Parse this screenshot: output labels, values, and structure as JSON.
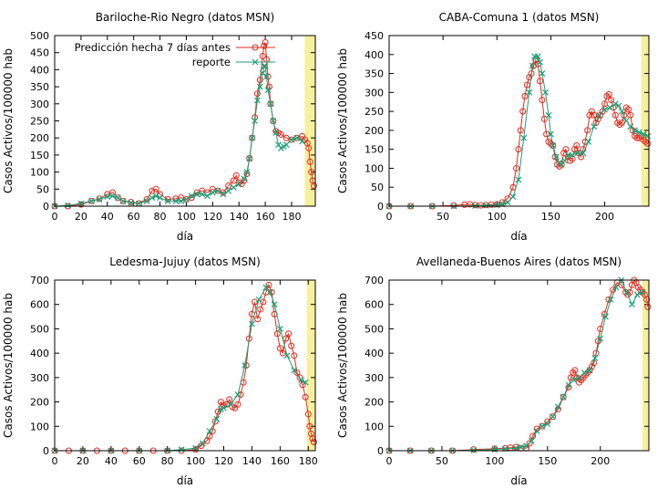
{
  "colors": {
    "pred": "#e3291c",
    "rep": "#1b9e77",
    "band": "#f7f09c",
    "bandEdge": "#c9b800"
  },
  "legend": {
    "pred": "Predicción hecha 7 días antes",
    "rep": "reporte"
  },
  "chart_data": [
    {
      "type": "line",
      "title": "Bariloche-Rio Negro (datos MSN)",
      "xlabel": "día",
      "ylabel": "Casos Activos/100000 hab",
      "xlim": [
        0,
        198
      ],
      "ylim": [
        0,
        500
      ],
      "xticks": [
        0,
        20,
        40,
        60,
        80,
        100,
        120,
        140,
        160,
        180
      ],
      "yticks": [
        0,
        50,
        100,
        150,
        200,
        250,
        300,
        350,
        400,
        450,
        500
      ],
      "band": [
        190,
        198
      ],
      "legend": "top-left",
      "series": [
        {
          "key": "pred",
          "name": "Predicción hecha 7 días antes",
          "x": [
            0,
            10,
            20,
            28,
            34,
            40,
            44,
            48,
            52,
            58,
            64,
            70,
            74,
            77,
            80,
            86,
            92,
            96,
            100,
            104,
            108,
            112,
            116,
            120,
            124,
            128,
            132,
            136,
            138,
            140,
            142,
            144,
            146,
            148,
            150,
            152,
            154,
            156,
            158,
            159,
            160,
            161,
            162,
            163,
            164,
            166,
            168,
            170,
            172,
            176,
            180,
            184,
            188,
            190,
            192,
            193,
            194,
            195,
            196,
            197
          ],
          "y": [
            0,
            0,
            5,
            15,
            22,
            35,
            40,
            25,
            15,
            12,
            8,
            20,
            45,
            50,
            35,
            20,
            22,
            25,
            20,
            25,
            40,
            45,
            40,
            50,
            45,
            40,
            60,
            75,
            90,
            70,
            65,
            75,
            95,
            140,
            200,
            260,
            330,
            370,
            440,
            470,
            480,
            430,
            380,
            350,
            300,
            250,
            220,
            215,
            210,
            200,
            195,
            200,
            205,
            195,
            185,
            170,
            130,
            100,
            75,
            60
          ]
        },
        {
          "key": "rep",
          "name": "reporte",
          "x": [
            0,
            10,
            20,
            28,
            34,
            40,
            44,
            48,
            52,
            58,
            64,
            70,
            74,
            77,
            80,
            86,
            92,
            96,
            100,
            104,
            108,
            112,
            116,
            120,
            124,
            128,
            132,
            136,
            140,
            144,
            146,
            148,
            150,
            152,
            154,
            156,
            158,
            159,
            160,
            161,
            162,
            164,
            166,
            168,
            170,
            172,
            174,
            176,
            180,
            184,
            188
          ],
          "y": [
            0,
            2,
            8,
            15,
            20,
            28,
            30,
            25,
            15,
            10,
            8,
            15,
            25,
            30,
            25,
            15,
            15,
            15,
            20,
            30,
            35,
            35,
            30,
            40,
            45,
            35,
            45,
            55,
            65,
            80,
            100,
            140,
            200,
            250,
            310,
            350,
            390,
            410,
            410,
            380,
            340,
            300,
            250,
            215,
            180,
            170,
            175,
            180,
            195,
            200,
            190
          ]
        }
      ]
    },
    {
      "type": "line",
      "title": "CABA-Comuna 1 (datos MSN)",
      "xlabel": "día",
      "ylabel": "Casos Activos/100000 hab",
      "xlim": [
        0,
        241
      ],
      "ylim": [
        0,
        450
      ],
      "xticks": [
        0,
        50,
        100,
        150,
        200
      ],
      "yticks": [
        0,
        50,
        100,
        150,
        200,
        250,
        300,
        350,
        400,
        450
      ],
      "band": [
        234,
        241
      ],
      "series": [
        {
          "key": "pred",
          "x": [
            0,
            20,
            40,
            60,
            70,
            75,
            80,
            85,
            90,
            95,
            100,
            105,
            110,
            115,
            118,
            120,
            122,
            124,
            126,
            128,
            130,
            132,
            134,
            136,
            138,
            140,
            142,
            144,
            146,
            148,
            150,
            152,
            154,
            156,
            158,
            160,
            162,
            164,
            166,
            168,
            170,
            172,
            174,
            176,
            178,
            180,
            182,
            184,
            186,
            188,
            190,
            192,
            194,
            196,
            198,
            200,
            202,
            204,
            206,
            208,
            210,
            212,
            214,
            216,
            218,
            220,
            222,
            224,
            226,
            228,
            230,
            232,
            234,
            236,
            238,
            240
          ],
          "y": [
            0,
            0,
            0,
            2,
            4,
            5,
            3,
            2,
            3,
            4,
            5,
            10,
            20,
            50,
            100,
            150,
            200,
            250,
            290,
            320,
            340,
            350,
            370,
            385,
            375,
            330,
            280,
            230,
            190,
            170,
            165,
            160,
            130,
            110,
            105,
            110,
            140,
            150,
            130,
            120,
            125,
            150,
            160,
            140,
            130,
            150,
            170,
            200,
            240,
            250,
            240,
            220,
            230,
            240,
            250,
            270,
            290,
            295,
            280,
            260,
            240,
            220,
            215,
            220,
            240,
            260,
            255,
            240,
            200,
            185,
            180,
            180,
            185,
            175,
            170,
            165
          ]
        },
        {
          "key": "rep",
          "x": [
            0,
            20,
            40,
            60,
            80,
            90,
            100,
            105,
            110,
            115,
            120,
            125,
            130,
            133,
            135,
            138,
            140,
            142,
            145,
            148,
            150,
            152,
            155,
            158,
            160,
            163,
            166,
            170,
            175,
            180,
            185,
            190,
            195,
            200,
            205,
            210,
            213,
            216,
            220,
            224,
            228,
            232,
            236,
            240
          ],
          "y": [
            0,
            0,
            0,
            0,
            1,
            2,
            3,
            5,
            10,
            25,
            70,
            180,
            300,
            370,
            395,
            395,
            380,
            350,
            300,
            240,
            190,
            160,
            130,
            115,
            110,
            120,
            135,
            135,
            140,
            140,
            170,
            210,
            240,
            255,
            260,
            270,
            265,
            250,
            225,
            210,
            200,
            195,
            190,
            185
          ]
        }
      ]
    },
    {
      "type": "line",
      "title": "Ledesma-Jujuy (datos MSN)",
      "xlabel": "día",
      "ylabel": "Casos Activos/100000 hab",
      "xlim": [
        0,
        185
      ],
      "ylim": [
        0,
        700
      ],
      "xticks": [
        0,
        20,
        40,
        60,
        80,
        100,
        120,
        140,
        160,
        180
      ],
      "yticks": [
        0,
        100,
        200,
        300,
        400,
        500,
        600,
        700
      ],
      "band": [
        179,
        185
      ],
      "series": [
        {
          "key": "pred",
          "x": [
            0,
            10,
            20,
            30,
            40,
            50,
            60,
            70,
            80,
            90,
            100,
            104,
            108,
            110,
            112,
            114,
            116,
            118,
            120,
            122,
            124,
            126,
            128,
            130,
            132,
            134,
            136,
            138,
            140,
            142,
            144,
            146,
            148,
            150,
            152,
            154,
            156,
            158,
            160,
            162,
            164,
            166,
            168,
            170,
            172,
            174,
            176,
            178,
            180,
            181,
            182,
            183,
            184
          ],
          "y": [
            0,
            0,
            0,
            0,
            0,
            0,
            0,
            0,
            0,
            0,
            5,
            20,
            40,
            60,
            80,
            120,
            160,
            200,
            185,
            190,
            210,
            180,
            175,
            190,
            230,
            280,
            350,
            460,
            560,
            610,
            540,
            580,
            610,
            650,
            680,
            650,
            560,
            480,
            420,
            400,
            460,
            480,
            430,
            390,
            320,
            300,
            270,
            220,
            150,
            100,
            70,
            50,
            35
          ]
        },
        {
          "key": "rep",
          "x": [
            0,
            20,
            40,
            60,
            80,
            90,
            100,
            105,
            110,
            115,
            118,
            120,
            125,
            130,
            135,
            140,
            145,
            150,
            153,
            156,
            160,
            165,
            170,
            175,
            178
          ],
          "y": [
            0,
            0,
            0,
            0,
            0,
            5,
            10,
            30,
            80,
            130,
            170,
            175,
            190,
            230,
            350,
            520,
            620,
            670,
            650,
            600,
            500,
            390,
            330,
            290,
            280
          ]
        }
      ]
    },
    {
      "type": "line",
      "title": "Avellaneda-Buenos Aires (datos MSN)",
      "xlabel": "día",
      "ylabel": "Casos Activos/100000 hab",
      "xlim": [
        0,
        246
      ],
      "ylim": [
        0,
        700
      ],
      "xticks": [
        0,
        50,
        100,
        150,
        200
      ],
      "yticks": [
        0,
        100,
        200,
        300,
        400,
        500,
        600,
        700
      ],
      "band": [
        240,
        246
      ],
      "series": [
        {
          "key": "pred",
          "x": [
            0,
            20,
            40,
            60,
            80,
            100,
            110,
            115,
            120,
            125,
            130,
            133,
            136,
            140,
            145,
            150,
            155,
            160,
            165,
            170,
            172,
            174,
            176,
            178,
            180,
            182,
            184,
            186,
            188,
            190,
            192,
            194,
            196,
            198,
            200,
            204,
            208,
            212,
            216,
            220,
            224,
            226,
            228,
            230,
            232,
            234,
            236,
            238,
            240,
            242,
            244,
            245
          ],
          "y": [
            0,
            0,
            0,
            0,
            5,
            8,
            10,
            12,
            15,
            10,
            10,
            30,
            60,
            90,
            100,
            120,
            140,
            170,
            220,
            260,
            300,
            320,
            330,
            300,
            280,
            290,
            300,
            310,
            320,
            330,
            345,
            360,
            400,
            450,
            500,
            560,
            620,
            660,
            690,
            680,
            650,
            640,
            650,
            680,
            700,
            690,
            670,
            660,
            650,
            640,
            620,
            590
          ]
        },
        {
          "key": "rep",
          "x": [
            0,
            20,
            40,
            60,
            80,
            100,
            110,
            120,
            125,
            130,
            135,
            140,
            145,
            150,
            155,
            160,
            165,
            170,
            175,
            180,
            185,
            190,
            195,
            200,
            205,
            210,
            215,
            220,
            225,
            230,
            235,
            240
          ],
          "y": [
            0,
            0,
            0,
            0,
            2,
            5,
            8,
            10,
            15,
            20,
            40,
            80,
            100,
            110,
            140,
            180,
            220,
            270,
            290,
            300,
            320,
            330,
            380,
            460,
            550,
            620,
            670,
            700,
            650,
            600,
            640,
            650
          ]
        }
      ]
    }
  ]
}
